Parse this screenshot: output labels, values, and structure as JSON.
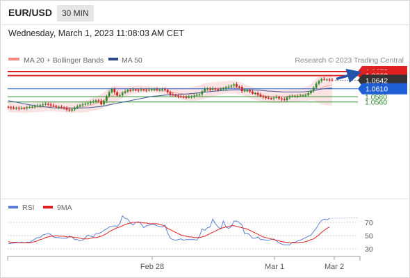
{
  "header": {
    "symbol": "EUR/USD",
    "timeframe": "30 MIN",
    "timestamp": "Wednesday, March 1, 2023 11:08:03 AM CET"
  },
  "legend": {
    "ma20_label": "MA 20 + Bollinger Bands",
    "ma50_label": "MA 50",
    "ma20_color": "#f28b82",
    "ma50_color": "#2b4a8a",
    "credit": "Research © 2023 Trading Central"
  },
  "colors": {
    "resistance": "#e02020",
    "last": "#333333",
    "pivot": "#1f5fd6",
    "support": "#2e8b2e",
    "up_candle": "#2e8b2e",
    "down_candle": "#cc2222",
    "band_fill": "#fce4e4",
    "rsi": "#5b7fd6",
    "rsi_ma": "#e02020",
    "forecast_arrow": "#2255aa"
  },
  "chart_data": [
    {
      "type": "candlestick",
      "title": "EUR/USD 30 MIN",
      "x_ticks": [
        "Feb 28",
        "Mar 1",
        "Mar 2"
      ],
      "levels": [
        {
          "label": "1.0675",
          "value": 1.0675,
          "kind": "resistance"
        },
        {
          "label": "1.0660",
          "value": 1.066,
          "kind": "resistance"
        },
        {
          "label": "1.0642",
          "value": 1.0642,
          "kind": "last"
        },
        {
          "label": "1.0610",
          "value": 1.061,
          "kind": "pivot"
        },
        {
          "label": "1.0580",
          "value": 1.058,
          "kind": "support"
        },
        {
          "label": "1.0560",
          "value": 1.056,
          "kind": "support"
        }
      ],
      "closes": [
        1.054,
        1.0538,
        1.0536,
        1.0538,
        1.0535,
        1.0537,
        1.0536,
        1.054,
        1.0541,
        1.0542,
        1.0544,
        1.0546,
        1.0548,
        1.0551,
        1.0553,
        1.0551,
        1.0547,
        1.0545,
        1.0541,
        1.0541,
        1.0539,
        1.0537,
        1.0531,
        1.0527,
        1.0532,
        1.0537,
        1.0543,
        1.0548,
        1.0551,
        1.0553,
        1.0556,
        1.0559,
        1.0562,
        1.0566,
        1.0564,
        1.0551,
        1.0564,
        1.0582,
        1.0597,
        1.0609,
        1.0597,
        1.0584,
        1.0586,
        1.0594,
        1.06,
        1.0606,
        1.0604,
        1.0607,
        1.0606,
        1.0604,
        1.0607,
        1.0606,
        1.0604,
        1.0606,
        1.0608,
        1.0608,
        1.0605,
        1.0607,
        1.0608,
        1.0606,
        1.0597,
        1.0589,
        1.0586,
        1.0584,
        1.0581,
        1.058,
        1.0579,
        1.0578,
        1.0579,
        1.0581,
        1.0584,
        1.0587,
        1.0589,
        1.06,
        1.0609,
        1.0611,
        1.0607,
        1.0611,
        1.0608,
        1.0606,
        1.0608,
        1.0612,
        1.0615,
        1.0618,
        1.0622,
        1.0627,
        1.0618,
        1.0617,
        1.0601,
        1.0603,
        1.0604,
        1.06,
        1.0592,
        1.0594,
        1.0588,
        1.0582,
        1.0578,
        1.0576,
        1.0574,
        1.0573,
        1.0576,
        1.0579,
        1.0573,
        1.057,
        1.0567,
        1.0577,
        1.0581,
        1.0582,
        1.0583,
        1.0583,
        1.0584,
        1.0585,
        1.0586,
        1.0593,
        1.0602,
        1.0614,
        1.0629,
        1.064,
        1.0647,
        1.0645,
        1.0645,
        1.0644,
        1.0642
      ],
      "bollinger_upper": [
        1.0558,
        1.0557,
        1.0556,
        1.0556,
        1.0555,
        1.0555,
        1.0555,
        1.0556,
        1.0556,
        1.0557,
        1.0557,
        1.0558,
        1.0558,
        1.0559,
        1.056,
        1.056,
        1.056,
        1.056,
        1.0559,
        1.0559,
        1.0558,
        1.0558,
        1.0558,
        1.0557,
        1.0557,
        1.0558,
        1.0559,
        1.0561,
        1.0563,
        1.0565,
        1.0568,
        1.0572,
        1.0576,
        1.058,
        1.0585,
        1.059,
        1.0597,
        1.0604,
        1.0612,
        1.0618,
        1.062,
        1.062,
        1.0619,
        1.0618,
        1.0618,
        1.0619,
        1.062,
        1.0621,
        1.0622,
        1.0622,
        1.0622,
        1.0621,
        1.062,
        1.062,
        1.0619,
        1.0618,
        1.0617,
        1.0616,
        1.0615,
        1.0614,
        1.0614,
        1.0614,
        1.0614,
        1.0614,
        1.0614,
        1.0614,
        1.0614,
        1.0614,
        1.0615,
        1.0616,
        1.0618,
        1.0621,
        1.0624,
        1.0627,
        1.063,
        1.0632,
        1.0633,
        1.0634,
        1.0635,
        1.0636,
        1.0637,
        1.0638,
        1.0639,
        1.064,
        1.064,
        1.064,
        1.0638,
        1.0636,
        1.0632,
        1.0628,
        1.0624,
        1.062,
        1.0617,
        1.0614,
        1.0612,
        1.061,
        1.0609,
        1.0608,
        1.0607,
        1.0606,
        1.0606,
        1.0606,
        1.0606,
        1.0606,
        1.0606,
        1.0607,
        1.0608,
        1.0609,
        1.061,
        1.0611,
        1.0612,
        1.0614,
        1.0616,
        1.062,
        1.0628,
        1.0638,
        1.065,
        1.0658,
        1.0662,
        1.0664,
        1.0665,
        1.0665,
        1.0665
      ],
      "bollinger_lower": [
        1.0522,
        1.0521,
        1.052,
        1.052,
        1.0519,
        1.0519,
        1.0519,
        1.0519,
        1.052,
        1.052,
        1.0521,
        1.0521,
        1.0522,
        1.0523,
        1.0524,
        1.0524,
        1.0524,
        1.0524,
        1.0523,
        1.0523,
        1.0522,
        1.0522,
        1.0521,
        1.052,
        1.0519,
        1.0519,
        1.0519,
        1.0519,
        1.052,
        1.0521,
        1.0522,
        1.0524,
        1.0526,
        1.0528,
        1.0531,
        1.0534,
        1.0537,
        1.0541,
        1.0545,
        1.055,
        1.0556,
        1.0562,
        1.0568,
        1.0574,
        1.0579,
        1.0583,
        1.0587,
        1.059,
        1.0592,
        1.0594,
        1.0595,
        1.0596,
        1.0596,
        1.0596,
        1.0596,
        1.0595,
        1.0594,
        1.0592,
        1.059,
        1.0588,
        1.0585,
        1.0582,
        1.0579,
        1.0576,
        1.0573,
        1.057,
        1.0568,
        1.0566,
        1.0564,
        1.0564,
        1.0564,
        1.0565,
        1.0567,
        1.0569,
        1.0572,
        1.0575,
        1.0578,
        1.0581,
        1.0584,
        1.0586,
        1.0588,
        1.059,
        1.0591,
        1.0592,
        1.0592,
        1.0592,
        1.0591,
        1.0589,
        1.0586,
        1.0583,
        1.0579,
        1.0575,
        1.0571,
        1.0568,
        1.0565,
        1.0563,
        1.0561,
        1.0559,
        1.0558,
        1.0557,
        1.0556,
        1.0556,
        1.0556,
        1.0556,
        1.0556,
        1.0557,
        1.0558,
        1.0559,
        1.056,
        1.0561,
        1.0562,
        1.0563,
        1.0564,
        1.0565,
        1.0567,
        1.0566,
        1.0562,
        1.0556,
        1.0551,
        1.0548,
        1.0547,
        1.0547,
        1.0547
      ],
      "ma20": [
        1.054,
        1.0539,
        1.0538,
        1.0538,
        1.0537,
        1.0537,
        1.0537,
        1.0538,
        1.0538,
        1.0539,
        1.0539,
        1.054,
        1.054,
        1.0541,
        1.0542,
        1.0542,
        1.0542,
        1.0542,
        1.0541,
        1.0541,
        1.054,
        1.054,
        1.054,
        1.0539,
        1.0538,
        1.0539,
        1.0539,
        1.054,
        1.0541,
        1.0543,
        1.0545,
        1.0548,
        1.0551,
        1.0554,
        1.0558,
        1.0562,
        1.0567,
        1.0572,
        1.0578,
        1.0583,
        1.0588,
        1.0591,
        1.0594,
        1.0596,
        1.0598,
        1.0601,
        1.0603,
        1.0605,
        1.0607,
        1.0608,
        1.0608,
        1.0608,
        1.0608,
        1.0608,
        1.0607,
        1.0606,
        1.0605,
        1.0604,
        1.0602,
        1.0601,
        1.0599,
        1.0598,
        1.0596,
        1.0595,
        1.0593,
        1.0592,
        1.0591,
        1.059,
        1.0589,
        1.059,
        1.0591,
        1.0593,
        1.0595,
        1.0598,
        1.0601,
        1.0603,
        1.0605,
        1.0607,
        1.0609,
        1.0611,
        1.0612,
        1.0614,
        1.0615,
        1.0616,
        1.0616,
        1.0616,
        1.0614,
        1.0612,
        1.0609,
        1.0605,
        1.0601,
        1.0598,
        1.0594,
        1.0591,
        1.0588,
        1.0586,
        1.0585,
        1.0583,
        1.0582,
        1.0581,
        1.0581,
        1.0581,
        1.0581,
        1.0581,
        1.0581,
        1.0582,
        1.0583,
        1.0584,
        1.0585,
        1.0586,
        1.0587,
        1.0588,
        1.059,
        1.0592,
        1.0597,
        1.0602,
        1.0606,
        1.061,
        1.0614,
        1.0617,
        1.062,
        1.0622,
        1.0624
      ],
      "ma50": [
        1.0565,
        1.0563,
        1.0561,
        1.0559,
        1.0557,
        1.0555,
        1.0553,
        1.0551,
        1.0549,
        1.0548,
        1.0546,
        1.0545,
        1.0543,
        1.0542,
        1.0541,
        1.054,
        1.0539,
        1.0538,
        1.0537,
        1.0537,
        1.0536,
        1.0536,
        1.0536,
        1.0536,
        1.0536,
        1.0536,
        1.0536,
        1.0537,
        1.0537,
        1.0538,
        1.0538,
        1.0539,
        1.054,
        1.0541,
        1.0542,
        1.0543,
        1.0545,
        1.0547,
        1.0549,
        1.0551,
        1.0553,
        1.0555,
        1.0557,
        1.0559,
        1.0561,
        1.0563,
        1.0565,
        1.0567,
        1.0569,
        1.0571,
        1.0573,
        1.0575,
        1.0577,
        1.0579,
        1.0581,
        1.0582,
        1.0583,
        1.0584,
        1.0585,
        1.0586,
        1.0586,
        1.0587,
        1.0587,
        1.0588,
        1.0588,
        1.0589,
        1.0589,
        1.059,
        1.0591,
        1.0592,
        1.0593,
        1.0594,
        1.0595,
        1.0596,
        1.0597,
        1.0598,
        1.0599,
        1.06,
        1.0601,
        1.0602,
        1.0603,
        1.0604,
        1.0604,
        1.0605,
        1.0605,
        1.0606,
        1.0606,
        1.0606,
        1.0606,
        1.0606,
        1.0606,
        1.0606,
        1.0606,
        1.0605,
        1.0605,
        1.0604,
        1.0603,
        1.0602,
        1.0601,
        1.0601,
        1.06,
        1.0599,
        1.0599,
        1.0598,
        1.0598,
        1.0598,
        1.0598,
        1.0598,
        1.0598,
        1.0598,
        1.0598,
        1.0598,
        1.0599,
        1.06,
        1.0601,
        1.0603,
        1.0605,
        1.0607,
        1.0609,
        1.061,
        1.0611,
        1.0612,
        1.0612
      ]
    },
    {
      "type": "line",
      "title": "RSI",
      "series": [
        {
          "name": "RSI",
          "values": [
            38,
            38,
            39,
            39,
            39,
            40,
            39,
            40,
            40,
            42,
            45,
            47,
            47,
            51,
            52,
            53,
            52,
            48,
            47,
            47,
            46,
            46,
            46,
            49,
            48,
            44,
            44,
            42,
            43,
            47,
            51,
            49,
            48,
            53,
            53,
            55,
            58,
            60,
            63,
            64,
            65,
            64,
            68,
            80,
            76,
            75,
            69,
            66,
            70,
            71,
            68,
            62,
            65,
            66,
            67,
            67,
            65,
            64,
            63,
            66,
            54,
            46,
            44,
            43,
            44,
            45,
            43,
            44,
            44,
            44,
            44,
            43,
            49,
            60,
            58,
            62,
            63,
            75,
            68,
            63,
            60,
            72,
            63,
            61,
            64,
            72,
            72,
            70,
            66,
            53,
            54,
            51,
            46,
            46,
            48,
            44,
            44,
            43,
            43,
            44,
            45,
            42,
            39,
            37,
            36,
            36,
            36,
            40,
            40,
            42,
            43,
            45,
            47,
            49,
            51,
            56,
            61,
            68,
            73,
            75,
            74,
            76
          ]
        },
        {
          "name": "9MA",
          "values": [
            41,
            40,
            40,
            40,
            39,
            39,
            39,
            39,
            39,
            40,
            41,
            42,
            44,
            45,
            47,
            48,
            49,
            49,
            50,
            49,
            49,
            49,
            48,
            48,
            48,
            47,
            47,
            46,
            45,
            45,
            45,
            46,
            47,
            47,
            48,
            49,
            51,
            53,
            56,
            58,
            60,
            62,
            63,
            65,
            67,
            68,
            69,
            70,
            70,
            70,
            70,
            69,
            69,
            68,
            68,
            68,
            68,
            67,
            66,
            64,
            61,
            59,
            57,
            55,
            53,
            51,
            50,
            49,
            48,
            48,
            47,
            47,
            47,
            48,
            49,
            51,
            53,
            55,
            57,
            59,
            61,
            62,
            63,
            64,
            65,
            65,
            64,
            63,
            62,
            61,
            60,
            58,
            56,
            54,
            52,
            50,
            48,
            47,
            46,
            45,
            44,
            43,
            42,
            41,
            40,
            40,
            39,
            39,
            39,
            39,
            40,
            40,
            41,
            42,
            44,
            45,
            48,
            51,
            55,
            58,
            61,
            63
          ]
        }
      ],
      "y_ticks": [
        70,
        50,
        30
      ],
      "ylim": [
        20,
        85
      ]
    }
  ]
}
